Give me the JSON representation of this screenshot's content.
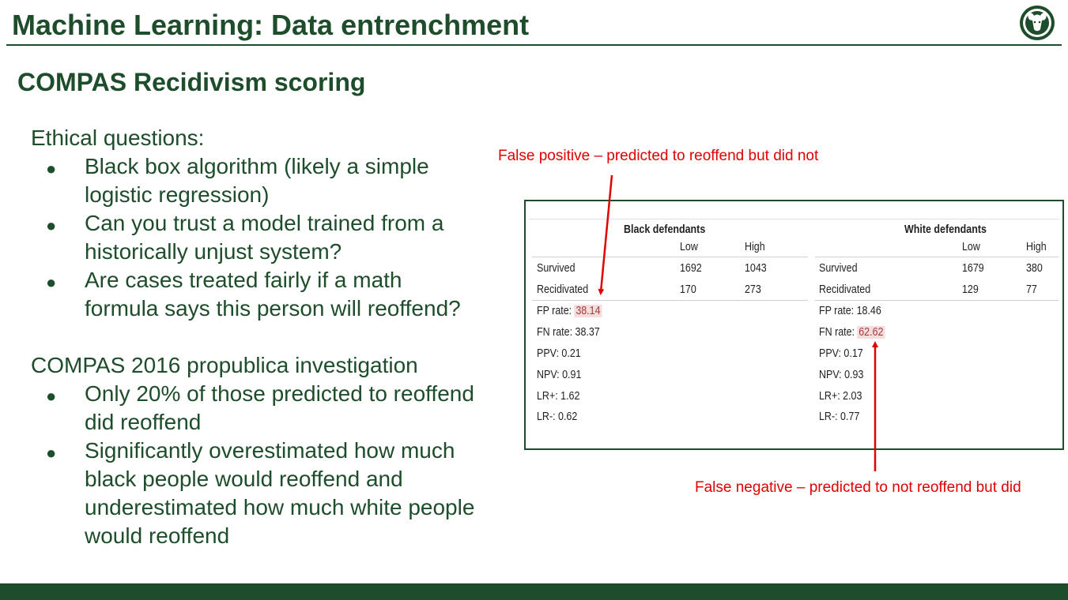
{
  "slide": {
    "title": "Machine Learning: Data entrenchment",
    "subtitle": "COMPAS Recidivism scoring"
  },
  "left": {
    "section1": {
      "heading": "Ethical questions:",
      "bullets": [
        {
          "l1": "Black box algorithm (likely a simple",
          "l2": "logistic regression)"
        },
        {
          "l1": "Can you trust a model trained from a",
          "l2": "historically unjust system?"
        },
        {
          "l1": "Are cases treated fairly if a math",
          "l2": "formula says this person will reoffend?"
        }
      ]
    },
    "section2": {
      "heading": "COMPAS 2016 propublica investigation",
      "bullets": [
        {
          "l1": "Only 20% of those predicted to reoffend",
          "l2": "did reoffend"
        },
        {
          "l1": "Significantly overestimated how much",
          "l2": "black people would reoffend and",
          "l3": "underestimated how much white people",
          "l4": "would reoffend"
        }
      ]
    },
    "bullet_glyph": "●"
  },
  "annotations": {
    "false_positive": "False positive – predicted to reoffend but did not",
    "false_negative": "False negative – predicted to not reoffend but did",
    "color": "#e00000"
  },
  "table": {
    "col_low": "Low",
    "col_high": "High",
    "black": {
      "header": "Black defendants",
      "survived_label": "Survived",
      "survived_low": "1692",
      "survived_high": "1043",
      "recid_label": "Recidivated",
      "recid_low": "170",
      "recid_high": "273",
      "fp_label": "FP rate:",
      "fp_value": "38.14",
      "fn": "FN rate: 38.37",
      "ppv": "PPV: 0.21",
      "npv": "NPV: 0.91",
      "lrp": "LR+: 1.62",
      "lrm": "LR-: 0.62"
    },
    "white": {
      "header": "White defendants",
      "survived_label": "Survived",
      "survived_low": "1679",
      "survived_high": "380",
      "recid_label": "Recidivated",
      "recid_low": "129",
      "recid_high": "77",
      "fp": "FP rate: 18.46",
      "fn_label": "FN rate:",
      "fn_value": "62.62",
      "ppv": "PPV: 0.17",
      "npv": "NPV: 0.93",
      "lrp": "LR+: 2.03",
      "lrm": "LR-: 0.77"
    }
  },
  "colors": {
    "brand_green": "#1e4d2b",
    "highlight": "#f6dcdc"
  },
  "logo": {
    "icon": "ram-logo-icon"
  }
}
